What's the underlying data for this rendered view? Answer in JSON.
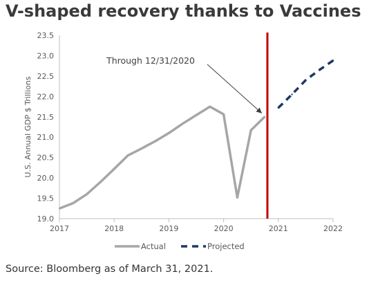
{
  "header": {
    "title": "V-shaped recovery thanks to Vaccines"
  },
  "footer": {
    "source": "Source: Bloomberg as of March 31, 2021."
  },
  "chart_data": {
    "type": "line",
    "ylabel": "U.S. Annual GDP $ Trillions",
    "xlabel": "",
    "ylim": [
      19.0,
      23.5
    ],
    "xlim": [
      2017,
      2022
    ],
    "x_ticks": [
      "2017",
      "2018",
      "2019",
      "2020",
      "2021",
      "2022"
    ],
    "y_ticks": [
      "19.0",
      "19.5",
      "20.0",
      "20.5",
      "21.0",
      "21.5",
      "22.0",
      "22.5",
      "23.0",
      "23.5"
    ],
    "grid": false,
    "legend": "bottom",
    "series": [
      {
        "name": "Actual",
        "color": "#a6a6a6",
        "style": "solid",
        "x": [
          2017.0,
          2017.25,
          2017.5,
          2017.75,
          2018.0,
          2018.25,
          2018.5,
          2018.75,
          2019.0,
          2019.25,
          2019.5,
          2019.75,
          2020.0,
          2020.25,
          2020.5,
          2020.75
        ],
        "values": [
          19.25,
          19.38,
          19.6,
          19.9,
          20.22,
          20.55,
          20.72,
          20.9,
          21.1,
          21.33,
          21.54,
          21.75,
          21.56,
          19.52,
          21.17,
          21.5
        ]
      },
      {
        "name": "Projected",
        "color": "#1f3864",
        "style": "dashed",
        "x": [
          2021.0,
          2021.25,
          2021.5,
          2021.75,
          2022.0
        ],
        "values": [
          21.72,
          22.05,
          22.4,
          22.65,
          22.88
        ]
      }
    ],
    "vertical_line": {
      "x": 2020.8,
      "color": "#c00000"
    },
    "annotation": {
      "text": "Through 12/31/2020",
      "x": 2020.75,
      "y": 21.5
    }
  }
}
